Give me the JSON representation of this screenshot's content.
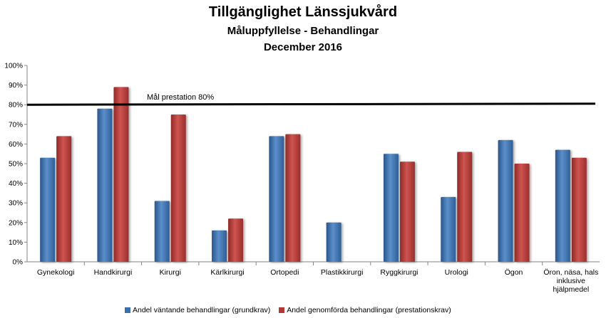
{
  "chart_data": {
    "type": "bar",
    "title": "Tillgänglighet Länssjukvård",
    "subtitle": "Måluppfyllelse - Behandlingar",
    "subtitle2": "December 2016",
    "categories": [
      "Gynekologi",
      "Handkirurgi",
      "Kirurgi",
      "Kärlkirurgi",
      "Ortopedi",
      "Plastikkirurgi",
      "Ryggkirurgi",
      "Urologi",
      "Ögon",
      "Öron, näsa, hals inklusive hjälpmedel"
    ],
    "category_lines": [
      [
        "Gynekologi"
      ],
      [
        "Handkirurgi"
      ],
      [
        "Kirurgi"
      ],
      [
        "Kärlkirurgi"
      ],
      [
        "Ortopedi"
      ],
      [
        "Plastikkirurgi"
      ],
      [
        "Ryggkirurgi"
      ],
      [
        "Urologi"
      ],
      [
        "Ögon"
      ],
      [
        "Öron, näsa, hals",
        "inklusive",
        "hjälpmedel"
      ]
    ],
    "series": [
      {
        "name": "Andel väntande behandlingar (grundkrav)",
        "color": "#3A6FA9",
        "values": [
          0.53,
          0.78,
          0.31,
          0.16,
          0.64,
          0.2,
          0.55,
          0.33,
          0.62,
          0.57
        ]
      },
      {
        "name": "Andel genomförda behandlingar (prestationskrav)",
        "color": "#B23A36",
        "values": [
          0.64,
          0.89,
          0.75,
          0.22,
          0.65,
          null,
          0.51,
          0.56,
          0.5,
          0.53
        ]
      }
    ],
    "ylim": [
      0,
      1
    ],
    "yticks": [
      "0%",
      "10%",
      "20%",
      "30%",
      "40%",
      "50%",
      "60%",
      "70%",
      "80%",
      "90%",
      "100%"
    ],
    "grid": false,
    "legend_position": "bottom",
    "target_line": {
      "value": 0.8,
      "label": "Mål prestation  80%"
    }
  }
}
